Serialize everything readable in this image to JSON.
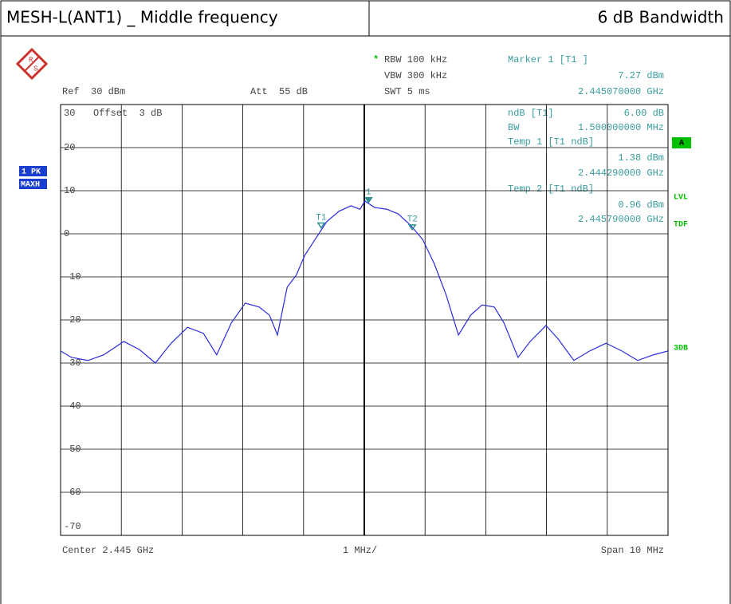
{
  "header": {
    "title": "MESH-L(ANT1) _ Middle frequency",
    "subtitle": "6 dB Bandwidth"
  },
  "settings": {
    "star": "*",
    "rbw": "RBW 100 kHz",
    "vbw": "VBW 300 kHz",
    "swt": "SWT 5 ms",
    "ref": "Ref  30 dBm",
    "att": "Att  55 dB",
    "offset": "Offset  3 dB"
  },
  "marker_panel": {
    "marker": "Marker 1 [T1 ]",
    "marker_level": "7.27 dBm",
    "marker_freq": "2.445070000 GHz",
    "ndb": "ndB [T1]",
    "ndb_value": "6.00 dB",
    "bw": "BW",
    "bw_value": "1.500000000 MHz",
    "temp1": "Temp 1 [T1 ndB]",
    "temp1_level": "1.38 dBm",
    "temp1_freq": "2.444290000 GHz",
    "temp2": "Temp 2 [T1 ndB]",
    "temp2_level": "0.96 dBm",
    "temp2_freq": "2.445790000 GHz"
  },
  "side_labels": {
    "trace": "1 PK",
    "detector": "MAXH",
    "a": "A",
    "lvl": "LVL",
    "tdf": "TDF",
    "db3": "3DB"
  },
  "footer": {
    "center": "Center 2.445 GHz",
    "div": "1 MHz/",
    "span": "Span 10 MHz"
  },
  "chart_data": {
    "type": "line",
    "x": [
      2.44,
      2.44018,
      2.44045,
      2.44071,
      2.44104,
      2.4413,
      2.44156,
      2.44182,
      2.44209,
      2.44235,
      2.44257,
      2.44281,
      2.44304,
      2.44327,
      2.44344,
      2.44357,
      2.44373,
      2.44388,
      2.44402,
      2.44419,
      2.44438,
      2.44458,
      2.44478,
      2.44493,
      2.44501,
      2.44517,
      2.44537,
      2.44556,
      2.44576,
      2.44596,
      2.44615,
      2.44635,
      2.44655,
      2.44675,
      2.44694,
      2.44714,
      2.4473,
      2.44753,
      2.44773,
      2.44799,
      2.44819,
      2.44845,
      2.44871,
      2.44898,
      2.44924,
      2.4495,
      2.44976,
      2.45
    ],
    "series": [
      {
        "color": "#2a2ae0",
        "values": [
          -27.2,
          -28.7,
          -29.4,
          -28.1,
          -25,
          -26.9,
          -30,
          -25.4,
          -21.7,
          -23.1,
          -28.1,
          -20.7,
          -16.1,
          -17,
          -18.9,
          -23.5,
          -12.4,
          -9.6,
          -5,
          -1.3,
          2.8,
          5.2,
          6.5,
          5.7,
          7.6,
          6.1,
          5.7,
          4.6,
          2,
          -1.3,
          -6.9,
          -14.3,
          -23.5,
          -18.9,
          -16.5,
          -17,
          -20.7,
          -28.7,
          -25,
          -21.3,
          -24.4,
          -29.4,
          -27.2,
          -25.4,
          -27.2,
          -29.4,
          -28.1,
          -27.2
        ]
      }
    ],
    "markers": [
      {
        "label": "1",
        "x": 2.44507,
        "value": 7.27
      },
      {
        "label": "T1",
        "x": 2.44429,
        "value": 1.38
      },
      {
        "label": "T2",
        "x": 2.44579,
        "value": 0.96
      }
    ],
    "marker_color": "#2e8f90",
    "xlim": [
      2.44,
      2.45
    ],
    "xticks": [
      2.44,
      2.441,
      2.442,
      2.443,
      2.444,
      2.445,
      2.446,
      2.447,
      2.448,
      2.449,
      2.45
    ],
    "ylim": [
      -70,
      30
    ],
    "yticks": [
      30,
      20,
      10,
      0,
      -10,
      -20,
      -30,
      -40,
      -50,
      -60,
      -70
    ],
    "grid": true
  }
}
